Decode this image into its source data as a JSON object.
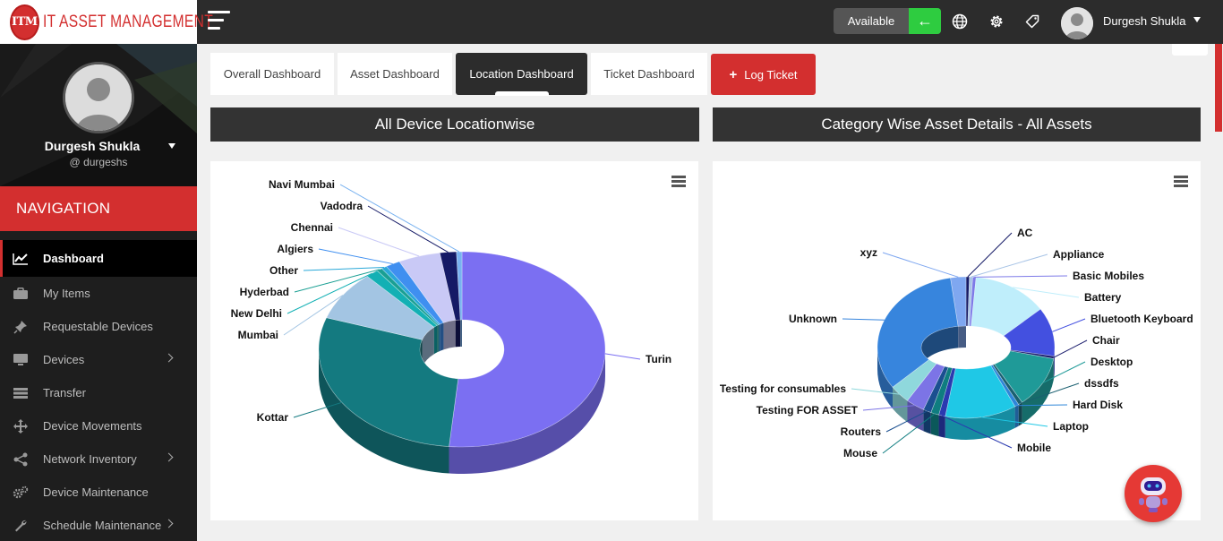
{
  "app": {
    "logo_badge": "ITM",
    "logo_text": "IT ASSET MANAGEMENT",
    "brand_color": "#d32f2f",
    "accent_green": "#2ecc40"
  },
  "header": {
    "status_label": "Available",
    "user_name": "Durgesh Shukla",
    "icons": [
      "menu-icon",
      "status-arrow-icon",
      "globe-icon",
      "gear-icon",
      "tag-icon",
      "avatar",
      "caret-down-icon"
    ]
  },
  "sidebar": {
    "profile_name": "Durgesh Shukla",
    "profile_handle": "@ durgeshs",
    "nav_title": "NAVIGATION",
    "items": [
      {
        "label": "Dashboard",
        "icon": "chart-line-icon",
        "active": true
      },
      {
        "label": "My Items",
        "icon": "briefcase-icon"
      },
      {
        "label": "Requestable Devices",
        "icon": "pin-icon"
      },
      {
        "label": "Devices",
        "icon": "monitor-icon",
        "submenu": true
      },
      {
        "label": "Transfer",
        "icon": "list-icon"
      },
      {
        "label": "Device Movements",
        "icon": "move-icon"
      },
      {
        "label": "Network Inventory",
        "icon": "share-icon",
        "submenu": true
      },
      {
        "label": "Device Maintenance",
        "icon": "gears-icon"
      },
      {
        "label": "Schedule Maintenance",
        "icon": "wrench-icon",
        "submenu": true
      }
    ]
  },
  "tabs": [
    {
      "label": "Overall Dashboard"
    },
    {
      "label": "Asset Dashboard"
    },
    {
      "label": "Location Dashboard",
      "active": true
    },
    {
      "label": "Ticket Dashboard"
    }
  ],
  "log_ticket_label": "Log Ticket",
  "panels": {
    "left_title": "All Device Locationwise",
    "right_title": "Category Wise Asset Details - All Assets"
  },
  "chart_data": [
    {
      "type": "pie",
      "variant": "3d-donut",
      "slices": [
        {
          "name": "Turin",
          "value": 50.0,
          "color": "#7b6ff2"
        },
        {
          "name": "Kottar",
          "value": 28.0,
          "color": "#147a80"
        },
        {
          "name": "Mumbai",
          "value": 8.0,
          "color": "#a3c5e3"
        },
        {
          "name": "New Delhi",
          "value": 1.4,
          "color": "#13b0b4"
        },
        {
          "name": "Hyderbad",
          "value": 0.6,
          "color": "#1a9f93"
        },
        {
          "name": "Other",
          "value": 0.6,
          "color": "#2aa8d8"
        },
        {
          "name": "Algiers",
          "value": 1.6,
          "color": "#3f8ff0"
        },
        {
          "name": "Chennai",
          "value": 4.6,
          "color": "#c9c9f6"
        },
        {
          "name": "Vadodra",
          "value": 1.8,
          "color": "#151a66"
        },
        {
          "name": "Navi Mumbai",
          "value": 0.6,
          "color": "#79b2f0"
        }
      ]
    },
    {
      "type": "pie",
      "variant": "3d-donut",
      "slices": [
        {
          "name": "AC",
          "value": 0.6,
          "color": "#151a66"
        },
        {
          "name": "Appliance",
          "value": 0.6,
          "color": "#a8c4e6"
        },
        {
          "name": "Basic Mobiles",
          "value": 0.6,
          "color": "#7d7ae8"
        },
        {
          "name": "Battery",
          "value": 14.0,
          "color": "#bfeefb"
        },
        {
          "name": "Bluetooth Keyboard",
          "value": 11.0,
          "color": "#4350e0"
        },
        {
          "name": "Chair",
          "value": 0.6,
          "color": "#1d1f6e"
        },
        {
          "name": "Desktop",
          "value": 11.5,
          "color": "#1f9a98"
        },
        {
          "name": "dssdfs",
          "value": 0.8,
          "color": "#1a5f70"
        },
        {
          "name": "Hard Disk",
          "value": 0.8,
          "color": "#2e86d8"
        },
        {
          "name": "Laptop",
          "value": 13.0,
          "color": "#1fc8e6"
        },
        {
          "name": "Mobile",
          "value": 1.2,
          "color": "#2a3ab0"
        },
        {
          "name": "Mouse",
          "value": 1.5,
          "color": "#0f7d80"
        },
        {
          "name": "Routers",
          "value": 1.5,
          "color": "#1a4f90"
        },
        {
          "name": "Testing FOR ASSET",
          "value": 3.5,
          "color": "#7c74e6"
        },
        {
          "name": "Testing for consumables",
          "value": 4.0,
          "color": "#8fd8dc"
        },
        {
          "name": "Unknown",
          "value": 31.5,
          "color": "#3785dd"
        },
        {
          "name": "xyz",
          "value": 2.8,
          "color": "#7fa7f0"
        }
      ]
    }
  ]
}
